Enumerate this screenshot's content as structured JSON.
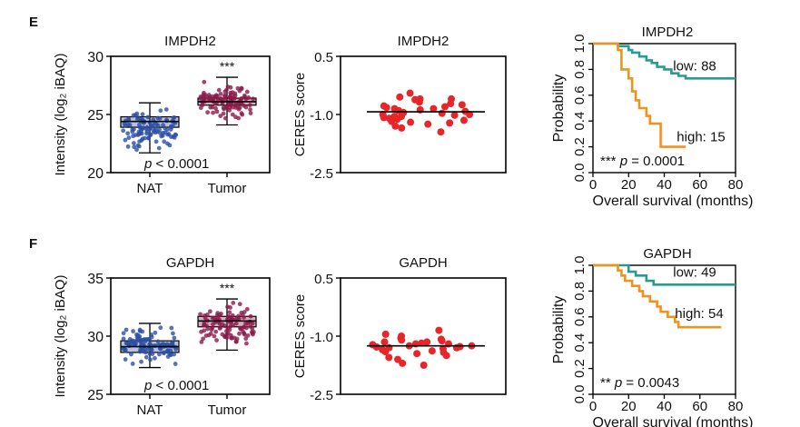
{
  "panels": [
    {
      "letter": "E",
      "protein": "IMPDH2",
      "boxplot": {
        "title": "IMPDH2",
        "ylabel": "Intensity (log₂ iBAQ)",
        "ylim": [
          20,
          30
        ],
        "yticks": [
          "20",
          "25",
          "30"
        ],
        "categories": [
          "NAT",
          "Tumor"
        ],
        "groups": [
          {
            "name": "NAT",
            "color": "#2d4fa3",
            "whisker_low": 21.7,
            "q1": 23.9,
            "median": 24.4,
            "q3": 24.8,
            "whisker_high": 26.0
          },
          {
            "name": "Tumor",
            "color": "#8b1a4a",
            "whisker_low": 24.1,
            "q1": 25.8,
            "median": 26.1,
            "q3": 26.4,
            "whisker_high": 28.2
          }
        ],
        "significance": "***",
        "pvalue_p": "p",
        "pvalue_rest": " < 0.0001"
      },
      "ceres": {
        "title": "IMPDH2",
        "ylabel": "CERES score",
        "ylim": [
          -2.5,
          0.5
        ],
        "yticks": [
          "0.5",
          "-1.0",
          "-2.5"
        ],
        "mean": -0.93,
        "color": "#e8262a",
        "values": [
          -0.45,
          -0.55,
          -0.6,
          -0.6,
          -0.62,
          -0.68,
          -0.72,
          -0.75,
          -0.78,
          -0.8,
          -0.82,
          -0.85,
          -0.85,
          -0.88,
          -0.9,
          -0.92,
          -0.95,
          -0.97,
          -1.0,
          -1.0,
          -1.02,
          -1.05,
          -1.05,
          -1.08,
          -1.1,
          -1.12,
          -1.15,
          -1.18,
          -1.2,
          -1.22,
          -1.25,
          -1.3,
          -1.35,
          -1.45
        ]
      },
      "km": {
        "title": "IMPDH2",
        "ylabel": "Probability",
        "xlabel": "Overall survival (months)",
        "xlim": [
          0,
          80
        ],
        "ylim": [
          0,
          1
        ],
        "xticks": [
          "0",
          "20",
          "40",
          "60",
          "80"
        ],
        "yticks": [
          "0.0",
          "0.2",
          "0.4",
          "0.6",
          "0.8",
          "1.0"
        ],
        "series": [
          {
            "name": "low: 88",
            "color": "#2a9c8f",
            "x": [
              0,
              14,
              20,
              22,
              26,
              30,
              33,
              36,
              40,
              44,
              48,
              52,
              80
            ],
            "y": [
              1.0,
              0.98,
              0.95,
              0.93,
              0.9,
              0.87,
              0.85,
              0.82,
              0.8,
              0.77,
              0.75,
              0.73,
              0.73
            ]
          },
          {
            "name": "high: 15",
            "color": "#f0931e",
            "x": [
              0,
              14,
              16,
              20,
              22,
              24,
              26,
              30,
              32,
              36,
              38,
              40,
              52
            ],
            "y": [
              1.0,
              0.95,
              0.8,
              0.73,
              0.63,
              0.56,
              0.5,
              0.44,
              0.38,
              0.38,
              0.2,
              0.2,
              0.2
            ]
          }
        ],
        "significance": "***",
        "pvalue_p": "p",
        "pvalue_rest": " = 0.0001"
      }
    },
    {
      "letter": "F",
      "protein": "GAPDH",
      "boxplot": {
        "title": "GAPDH",
        "ylabel": "Intensity (log₂ iBAQ)",
        "ylim": [
          25,
          35
        ],
        "yticks": [
          "25",
          "30",
          "35"
        ],
        "categories": [
          "NAT",
          "Tumor"
        ],
        "groups": [
          {
            "name": "NAT",
            "color": "#2d4fa3",
            "whisker_low": 27.3,
            "q1": 28.6,
            "median": 29.1,
            "q3": 29.6,
            "whisker_high": 31.1
          },
          {
            "name": "Tumor",
            "color": "#8b1a4a",
            "whisker_low": 28.8,
            "q1": 30.8,
            "median": 31.3,
            "q3": 31.7,
            "whisker_high": 33.2
          }
        ],
        "significance": "***",
        "pvalue_p": "p",
        "pvalue_rest": " < 0.0001"
      },
      "ceres": {
        "title": "GAPDH",
        "ylabel": "CERES score",
        "ylim": [
          -2.5,
          0.5
        ],
        "yticks": [
          "0.5",
          "-1.0",
          "-2.5"
        ],
        "mean": -1.25,
        "color": "#e8262a",
        "values": [
          -0.85,
          -0.95,
          -1.0,
          -1.05,
          -1.08,
          -1.1,
          -1.12,
          -1.15,
          -1.15,
          -1.18,
          -1.2,
          -1.2,
          -1.22,
          -1.25,
          -1.25,
          -1.27,
          -1.28,
          -1.3,
          -1.3,
          -1.32,
          -1.35,
          -1.38,
          -1.4,
          -1.42,
          -1.45,
          -1.5,
          -1.55,
          -1.6,
          -1.7,
          -1.75
        ]
      },
      "km": {
        "title": "GAPDH",
        "ylabel": "Probability",
        "xlabel": "Overall survival (months)",
        "xlim": [
          0,
          80
        ],
        "ylim": [
          0,
          1
        ],
        "xticks": [
          "0",
          "20",
          "40",
          "60",
          "80"
        ],
        "yticks": [
          "0.0",
          "0.2",
          "0.4",
          "0.6",
          "0.8",
          "1.0"
        ],
        "series": [
          {
            "name": "low: 49",
            "color": "#2a9c8f",
            "x": [
              0,
              20,
              24,
              30,
              34,
              80
            ],
            "y": [
              1.0,
              0.95,
              0.92,
              0.88,
              0.85,
              0.85
            ]
          },
          {
            "name": "high: 54",
            "color": "#f0931e",
            "x": [
              0,
              14,
              16,
              18,
              22,
              26,
              28,
              32,
              36,
              38,
              42,
              46,
              48,
              72
            ],
            "y": [
              1.0,
              0.96,
              0.92,
              0.88,
              0.84,
              0.8,
              0.76,
              0.72,
              0.68,
              0.64,
              0.6,
              0.56,
              0.52,
              0.52
            ]
          }
        ],
        "significance": "**",
        "pvalue_p": "p",
        "pvalue_rest": " = 0.0043"
      }
    }
  ],
  "chart_data": [
    {
      "type": "box",
      "title": "IMPDH2",
      "ylabel": "Intensity (log₂ iBAQ)",
      "categories": [
        "NAT",
        "Tumor"
      ],
      "ylim": [
        20,
        30
      ],
      "series": [
        {
          "name": "NAT",
          "median": 24.4,
          "q1": 23.9,
          "q3": 24.8,
          "min": 21.7,
          "max": 26.0
        },
        {
          "name": "Tumor",
          "median": 26.1,
          "q1": 25.8,
          "q3": 26.4,
          "min": 24.1,
          "max": 28.2
        }
      ]
    },
    {
      "type": "scatter",
      "title": "IMPDH2",
      "ylabel": "CERES score",
      "ylim": [
        -2.5,
        0.5
      ],
      "mean": -0.93
    },
    {
      "type": "line",
      "title": "IMPDH2",
      "xlabel": "Overall survival (months)",
      "ylabel": "Probability",
      "xlim": [
        0,
        80
      ],
      "ylim": [
        0,
        1
      ]
    },
    {
      "type": "box",
      "title": "GAPDH",
      "ylabel": "Intensity (log₂ iBAQ)",
      "categories": [
        "NAT",
        "Tumor"
      ],
      "ylim": [
        25,
        35
      ],
      "series": [
        {
          "name": "NAT",
          "median": 29.1,
          "q1": 28.6,
          "q3": 29.6,
          "min": 27.3,
          "max": 31.1
        },
        {
          "name": "Tumor",
          "median": 31.3,
          "q1": 30.8,
          "q3": 31.7,
          "min": 28.8,
          "max": 33.2
        }
      ]
    },
    {
      "type": "scatter",
      "title": "GAPDH",
      "ylabel": "CERES score",
      "ylim": [
        -2.5,
        0.5
      ],
      "mean": -1.25
    },
    {
      "type": "line",
      "title": "GAPDH",
      "xlabel": "Overall survival (months)",
      "ylabel": "Probability",
      "xlim": [
        0,
        80
      ],
      "ylim": [
        0,
        1
      ]
    }
  ]
}
